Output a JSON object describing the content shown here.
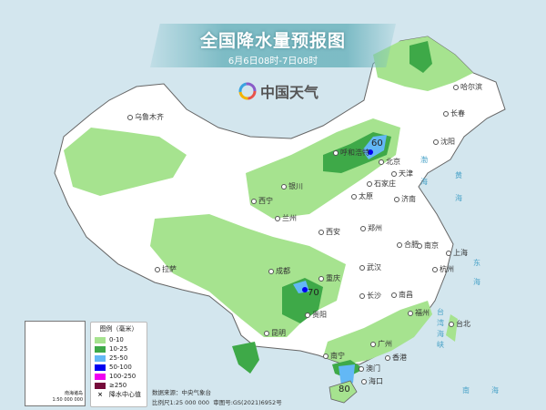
{
  "header": {
    "title": "全国降水量预报图",
    "subtitle": "6月6日08时-7日08时"
  },
  "logo": {
    "text": "中国天气"
  },
  "legend": {
    "title": "图例（毫米）",
    "items": [
      {
        "label": "0-10",
        "color": "#a6e38f"
      },
      {
        "label": "10-25",
        "color": "#3ea948"
      },
      {
        "label": "25-50",
        "color": "#63b8f5"
      },
      {
        "label": "50-100",
        "color": "#0000f0"
      },
      {
        "label": "100-250",
        "color": "#f000f0"
      },
      {
        "label": "≥250",
        "color": "#750a3a"
      }
    ],
    "center_marker": {
      "symbol": "×",
      "label": "降水中心值"
    }
  },
  "inset": {
    "title": "南海诸岛",
    "scale": "1:50 000 000"
  },
  "source": {
    "data_source": "数据来源：中央气象台",
    "scale": "比例尺1:25 000 000",
    "approval": "审图号:GS(2021)6952号"
  },
  "cities": [
    "乌鲁木齐",
    "哈尔滨",
    "长春",
    "沈阳",
    "呼和浩特",
    "北京",
    "天津",
    "石家庄",
    "太原",
    "济南",
    "银川",
    "西宁",
    "兰州",
    "西安",
    "郑州",
    "拉萨",
    "成都",
    "重庆",
    "武汉",
    "合肥",
    "南京",
    "上海",
    "杭州",
    "长沙",
    "南昌",
    "贵阳",
    "昆明",
    "福州",
    "台北",
    "南宁",
    "广州",
    "香港",
    "澳门",
    "海口"
  ],
  "rain_centers": [
    "60",
    "70",
    "80"
  ],
  "seas": [
    "渤",
    "海",
    "黄",
    "海",
    "东",
    "海",
    "南",
    "海",
    "台",
    "湾",
    "海",
    "峡"
  ]
}
